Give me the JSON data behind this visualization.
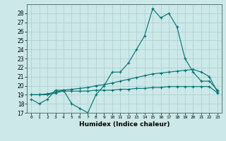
{
  "xlabel": "Humidex (Indice chaleur)",
  "x": [
    0,
    1,
    2,
    3,
    4,
    5,
    6,
    7,
    8,
    9,
    10,
    11,
    12,
    13,
    14,
    15,
    16,
    17,
    18,
    19,
    20,
    21,
    22,
    23
  ],
  "line1": [
    18.5,
    18.0,
    18.5,
    19.5,
    19.5,
    18.0,
    17.5,
    17.0,
    19.0,
    20.0,
    21.5,
    21.5,
    22.5,
    24.0,
    25.5,
    28.5,
    27.5,
    28.0,
    26.5,
    23.0,
    21.5,
    20.5,
    20.5,
    19.5
  ],
  "line2": [
    19.0,
    19.0,
    19.0,
    19.2,
    19.4,
    19.4,
    19.4,
    19.4,
    19.5,
    19.5,
    19.5,
    19.6,
    19.6,
    19.7,
    19.7,
    19.8,
    19.8,
    19.9,
    19.9,
    19.9,
    19.9,
    19.9,
    19.9,
    19.2
  ],
  "line3": [
    19.0,
    19.0,
    19.1,
    19.3,
    19.5,
    19.6,
    19.7,
    19.8,
    20.0,
    20.1,
    20.3,
    20.5,
    20.7,
    20.9,
    21.1,
    21.3,
    21.4,
    21.5,
    21.6,
    21.7,
    21.8,
    21.5,
    21.0,
    19.3
  ],
  "bg_color": "#cce8e8",
  "line_color": "#007070",
  "grid_color": "#aacccc",
  "ylim": [
    17,
    29
  ],
  "yticks": [
    17,
    18,
    19,
    20,
    21,
    22,
    23,
    24,
    25,
    26,
    27,
    28
  ],
  "xticks": [
    0,
    1,
    2,
    3,
    4,
    5,
    6,
    7,
    8,
    9,
    10,
    11,
    12,
    13,
    14,
    15,
    16,
    17,
    18,
    19,
    20,
    21,
    22,
    23
  ],
  "xtick_labels": [
    "0",
    "1",
    "2",
    "3",
    "4",
    "5",
    "6",
    "7",
    "8",
    "9",
    "10",
    "11",
    "12",
    "13",
    "14",
    "15",
    "16",
    "17",
    "18",
    "19",
    "20",
    "21",
    "22",
    "23"
  ]
}
